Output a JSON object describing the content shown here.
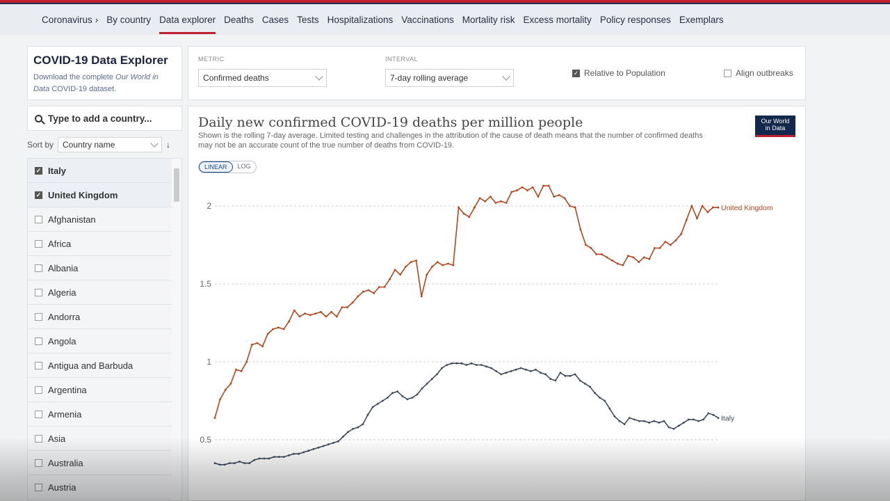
{
  "nav": {
    "root": "Coronavirus",
    "items": [
      "By country",
      "Data explorer",
      "Deaths",
      "Cases",
      "Tests",
      "Hospitalizations",
      "Vaccinations",
      "Mortality risk",
      "Excess mortality",
      "Policy responses",
      "Exemplars"
    ],
    "active": "Data explorer"
  },
  "brand": {
    "title": "COVID-19 Data Explorer",
    "sub_prefix": "Download the complete",
    "sub_link": "Our World in Data",
    "sub_suffix": "COVID-19 dataset."
  },
  "controls": {
    "metric_label": "METRIC",
    "metric_value": "Confirmed deaths",
    "interval_label": "INTERVAL",
    "interval_value": "7-day rolling average",
    "relative_label": "Relative to Population",
    "relative_checked": true,
    "align_label": "Align outbreaks",
    "align_checked": false
  },
  "search": {
    "placeholder": "Type to add a country..."
  },
  "sort": {
    "label": "Sort by",
    "value": "Country name"
  },
  "countries": [
    {
      "name": "Italy",
      "checked": true
    },
    {
      "name": "United Kingdom",
      "checked": true
    },
    {
      "name": "Afghanistan",
      "checked": false
    },
    {
      "name": "Africa",
      "checked": false
    },
    {
      "name": "Albania",
      "checked": false
    },
    {
      "name": "Algeria",
      "checked": false
    },
    {
      "name": "Andorra",
      "checked": false
    },
    {
      "name": "Angola",
      "checked": false
    },
    {
      "name": "Antigua and Barbuda",
      "checked": false
    },
    {
      "name": "Argentina",
      "checked": false
    },
    {
      "name": "Armenia",
      "checked": false
    },
    {
      "name": "Asia",
      "checked": false
    },
    {
      "name": "Australia",
      "checked": false
    },
    {
      "name": "Austria",
      "checked": false
    }
  ],
  "chart": {
    "title": "Daily new confirmed COVID-19 deaths per million people",
    "subtitle": "Shown is the rolling 7-day average. Limited testing and challenges in the attribution of the cause of death means that the number of confirmed deaths may not be an accurate count of the true number of deaths from COVID-19.",
    "logo_line1": "Our World",
    "logo_line2": "in Data",
    "scale_linear": "LINEAR",
    "scale_log": "LOG"
  },
  "chart_data": {
    "type": "line",
    "title": "Daily new confirmed COVID-19 deaths per million people",
    "yticks": [
      0.5,
      1,
      1.5,
      2
    ],
    "ylim": [
      0.32,
      2.22
    ],
    "grid": true,
    "series": [
      {
        "name": "United Kingdom",
        "color": "#b5461c",
        "values": [
          0.64,
          0.76,
          0.82,
          0.86,
          0.95,
          0.94,
          1.0,
          1.11,
          1.12,
          1.1,
          1.18,
          1.21,
          1.22,
          1.21,
          1.26,
          1.33,
          1.29,
          1.31,
          1.3,
          1.31,
          1.32,
          1.29,
          1.32,
          1.29,
          1.35,
          1.35,
          1.38,
          1.42,
          1.45,
          1.46,
          1.44,
          1.48,
          1.48,
          1.53,
          1.59,
          1.56,
          1.61,
          1.64,
          1.65,
          1.42,
          1.56,
          1.61,
          1.64,
          1.62,
          1.63,
          1.62,
          1.99,
          1.95,
          1.93,
          1.99,
          2.05,
          2.03,
          2.06,
          2.02,
          2.03,
          2.02,
          2.09,
          2.1,
          2.12,
          2.1,
          2.12,
          2.06,
          2.13,
          2.13,
          2.06,
          2.07,
          2.05,
          2.0,
          1.99,
          1.85,
          1.75,
          1.73,
          1.69,
          1.69,
          1.67,
          1.65,
          1.63,
          1.62,
          1.68,
          1.67,
          1.64,
          1.67,
          1.66,
          1.73,
          1.73,
          1.77,
          1.75,
          1.78,
          1.82,
          1.91,
          2.0,
          1.92,
          2.0,
          1.96,
          1.99,
          1.99
        ]
      },
      {
        "name": "Italy",
        "color": "#3e4b5c",
        "values": [
          0.35,
          0.34,
          0.34,
          0.35,
          0.35,
          0.36,
          0.35,
          0.35,
          0.37,
          0.38,
          0.38,
          0.38,
          0.39,
          0.39,
          0.39,
          0.4,
          0.41,
          0.41,
          0.42,
          0.43,
          0.44,
          0.45,
          0.46,
          0.47,
          0.48,
          0.49,
          0.52,
          0.55,
          0.57,
          0.58,
          0.6,
          0.66,
          0.71,
          0.73,
          0.75,
          0.77,
          0.8,
          0.81,
          0.78,
          0.76,
          0.77,
          0.79,
          0.83,
          0.86,
          0.89,
          0.92,
          0.96,
          0.98,
          0.99,
          0.99,
          0.99,
          0.98,
          0.99,
          0.98,
          0.98,
          0.97,
          0.96,
          0.94,
          0.92,
          0.93,
          0.94,
          0.95,
          0.96,
          0.95,
          0.94,
          0.95,
          0.93,
          0.92,
          0.89,
          0.88,
          0.93,
          0.91,
          0.91,
          0.92,
          0.88,
          0.86,
          0.84,
          0.8,
          0.77,
          0.75,
          0.7,
          0.65,
          0.62,
          0.6,
          0.64,
          0.63,
          0.62,
          0.62,
          0.61,
          0.62,
          0.61,
          0.62,
          0.58,
          0.57,
          0.59,
          0.61,
          0.63,
          0.63,
          0.62,
          0.63,
          0.67,
          0.66,
          0.64
        ]
      }
    ]
  }
}
